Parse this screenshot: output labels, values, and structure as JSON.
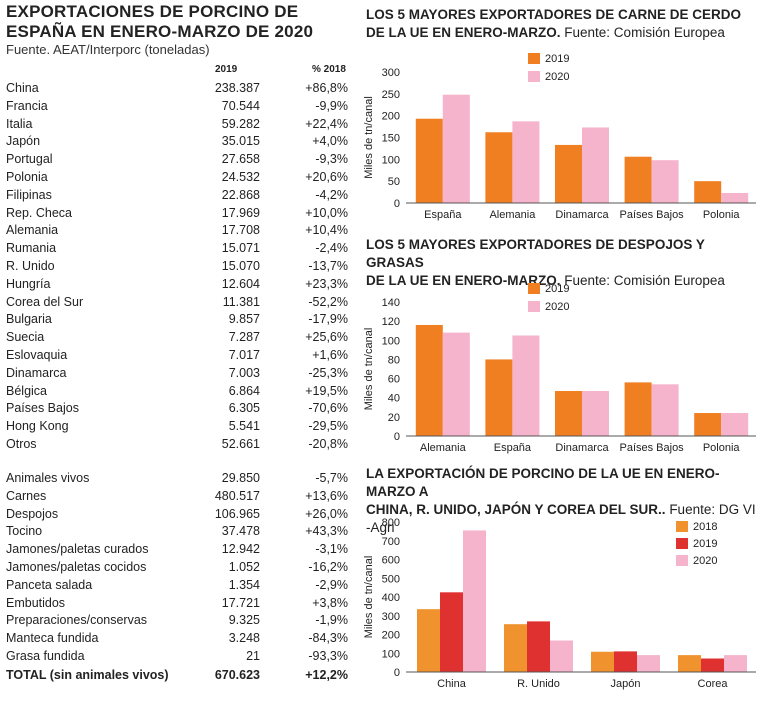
{
  "left": {
    "title": "EXPORTACIONES DE PORCINO DE ESPAÑA EN ENERO-MARZO DE 2020",
    "source": "Fuente. AEAT/Interporc (toneladas)",
    "col_headers": [
      "2019",
      "% 2018"
    ],
    "countries": [
      {
        "name": "China",
        "value": "238.387",
        "pct": "+86,8%"
      },
      {
        "name": "Francia",
        "value": "70.544",
        "pct": "-9,9%"
      },
      {
        "name": "Italia",
        "value": "59.282",
        "pct": "+22,4%"
      },
      {
        "name": "Japón",
        "value": "35.015",
        "pct": "+4,0%"
      },
      {
        "name": "Portugal",
        "value": "27.658",
        "pct": "-9,3%"
      },
      {
        "name": "Polonia",
        "value": "24.532",
        "pct": "+20,6%"
      },
      {
        "name": "Filipinas",
        "value": "22.868",
        "pct": "-4,2%"
      },
      {
        "name": "Rep. Checa",
        "value": "17.969",
        "pct": "+10,0%"
      },
      {
        "name": "Alemania",
        "value": "17.708",
        "pct": "+10,4%"
      },
      {
        "name": "Rumania",
        "value": "15.071",
        "pct": "-2,4%"
      },
      {
        "name": "R. Unido",
        "value": "15.070",
        "pct": "-13,7%"
      },
      {
        "name": "Hungría",
        "value": "12.604",
        "pct": "+23,3%"
      },
      {
        "name": "Corea del Sur",
        "value": "11.381",
        "pct": "-52,2%"
      },
      {
        "name": "Bulgaria",
        "value": "9.857",
        "pct": "-17,9%"
      },
      {
        "name": "Suecia",
        "value": "7.287",
        "pct": "+25,6%"
      },
      {
        "name": "Eslovaquia",
        "value": "7.017",
        "pct": "+1,6%"
      },
      {
        "name": "Dinamarca",
        "value": "7.003",
        "pct": "-25,3%"
      },
      {
        "name": "Bélgica",
        "value": "6.864",
        "pct": "+19,5%"
      },
      {
        "name": "Países Bajos",
        "value": "6.305",
        "pct": "-70,6%"
      },
      {
        "name": "Hong Kong",
        "value": "5.541",
        "pct": "-29,5%"
      },
      {
        "name": "Otros",
        "value": "52.661",
        "pct": "-20,8%"
      }
    ],
    "products": [
      {
        "name": "Animales vivos",
        "value": "29.850",
        "pct": "-5,7%"
      },
      {
        "name": "Carnes",
        "value": "480.517",
        "pct": "+13,6%"
      },
      {
        "name": "Despojos",
        "value": "106.965",
        "pct": "+26,0%"
      },
      {
        "name": "Tocino",
        "value": "37.478",
        "pct": "+43,3%"
      },
      {
        "name": "Jamones/paletas curados",
        "value": "12.942",
        "pct": "-3,1%"
      },
      {
        "name": "Jamones/paletas cocidos",
        "value": "1.052",
        "pct": "-16,2%"
      },
      {
        "name": "Panceta salada",
        "value": "1.354",
        "pct": "-2,9%"
      },
      {
        "name": "Embutidos",
        "value": "17.721",
        "pct": "+3,8%"
      },
      {
        "name": "Preparaciones/conservas",
        "value": "9.325",
        "pct": "-1,9%"
      },
      {
        "name": "Manteca fundida",
        "value": "3.248",
        "pct": "-84,3%"
      },
      {
        "name": "Grasa fundida",
        "value": "21",
        "pct": "-93,3%"
      }
    ],
    "total": {
      "name": "TOTAL (sin animales vivos)",
      "value": "670.623",
      "pct": "+12,2%"
    }
  },
  "colors": {
    "c2018": "#f0922e",
    "c2019": "#f07f22",
    "c2019_red": "#e03131",
    "c2020": "#f5b3cc",
    "axis": "#555555",
    "text": "#222222"
  },
  "chart_data": [
    {
      "type": "bar",
      "title_line1": "LOS 5 MAYORES EXPORTADORES DE CARNE DE CERDO",
      "title_line2": "DE LA UE EN ENERO-MARZO.",
      "source": "Fuente: Comisión Europea",
      "ylabel": "Miles de tn/canal",
      "ylim": [
        0,
        300
      ],
      "yticks": [
        "0",
        "50",
        "100",
        "150",
        "200",
        "250",
        "300"
      ],
      "categories": [
        "España",
        "Alemania",
        "Dinamarca",
        "Países Bajos",
        "Polonia"
      ],
      "series": [
        {
          "name": "2019",
          "values": [
            193,
            162,
            133,
            106,
            50
          ]
        },
        {
          "name": "2020",
          "values": [
            248,
            187,
            173,
            98,
            23
          ]
        }
      ]
    },
    {
      "type": "bar",
      "title_line1": "LOS 5 MAYORES EXPORTADORES DE DESPOJOS Y GRASAS",
      "title_line2": "DE LA UE EN ENERO-MARZO.",
      "source": "Fuente: Comisión Europea",
      "ylabel": "Miles de tn/canal",
      "ylim": [
        0,
        140
      ],
      "yticks": [
        "0",
        "20",
        "40",
        "60",
        "80",
        "100",
        "120",
        "140"
      ],
      "categories": [
        "Alemania",
        "España",
        "Dinamarca",
        "Países Bajos",
        "Polonia"
      ],
      "series": [
        {
          "name": "2019",
          "values": [
            116,
            80,
            47,
            56,
            24
          ]
        },
        {
          "name": "2020",
          "values": [
            108,
            105,
            47,
            54,
            24
          ]
        }
      ]
    },
    {
      "type": "bar",
      "title_line1": "LA EXPORTACIÓN DE PORCINO DE LA UE EN ENERO-MARZO A",
      "title_line2": "CHINA, R. UNIDO, JAPÓN Y COREA DEL SUR..",
      "source": "Fuente: DG VI -Agri",
      "ylabel": "Miles de tn/canal",
      "ylim": [
        0,
        800
      ],
      "yticks": [
        "0",
        "100",
        "200",
        "300",
        "400",
        "500",
        "600",
        "700",
        "800"
      ],
      "categories": [
        "China",
        "R. Unido",
        "Japón",
        "Corea"
      ],
      "series": [
        {
          "name": "2018",
          "values": [
            335,
            255,
            108,
            90
          ]
        },
        {
          "name": "2019",
          "values": [
            425,
            270,
            110,
            72
          ]
        },
        {
          "name": "2020",
          "values": [
            755,
            168,
            90,
            90
          ]
        }
      ]
    }
  ]
}
